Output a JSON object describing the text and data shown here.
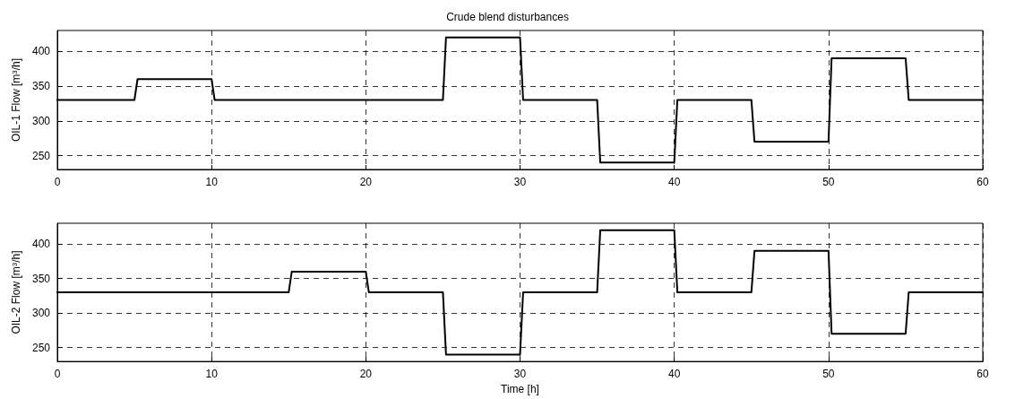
{
  "chart_data": [
    {
      "type": "line",
      "title": "Crude blend disturbances",
      "ylabel": "OIL-1 Flow [m$^{3}$/h]",
      "color": "#000000",
      "marker": "none",
      "line_style": "solid",
      "grid": true,
      "x": [
        0,
        5,
        5.2,
        10,
        10.2,
        25,
        25.2,
        30,
        30.2,
        35,
        35.2,
        40,
        40.2,
        45,
        45.2,
        50,
        50.2,
        55,
        55.2,
        60
      ],
      "values": [
        330,
        330,
        360,
        360,
        330,
        330,
        420,
        420,
        330,
        330,
        240,
        240,
        330,
        330,
        270,
        270,
        390,
        390,
        330,
        330
      ],
      "xlim": [
        0,
        60
      ],
      "xticks": [
        0,
        10,
        20,
        30,
        40,
        50,
        60
      ],
      "ylim": [
        230,
        430
      ],
      "yticks": [
        250,
        300,
        350,
        400
      ]
    },
    {
      "type": "line",
      "xlabel": "Time [h]",
      "ylabel": "OIL-2 Flow [m$^{3}$/h]",
      "color": "#000000",
      "marker": "none",
      "line_style": "solid",
      "grid": true,
      "x": [
        0,
        15,
        15.2,
        20,
        20.2,
        25,
        25.2,
        30,
        30.2,
        35,
        35.2,
        40,
        40.2,
        45,
        45.2,
        50,
        50.2,
        55,
        55.2,
        60
      ],
      "values": [
        330,
        330,
        360,
        360,
        330,
        330,
        240,
        240,
        330,
        330,
        420,
        420,
        330,
        330,
        390,
        390,
        270,
        270,
        330,
        330
      ],
      "xlim": [
        0,
        60
      ],
      "xticks": [
        0,
        10,
        20,
        30,
        40,
        50,
        60
      ],
      "ylim": [
        230,
        430
      ],
      "yticks": [
        250,
        300,
        350,
        400
      ]
    }
  ]
}
